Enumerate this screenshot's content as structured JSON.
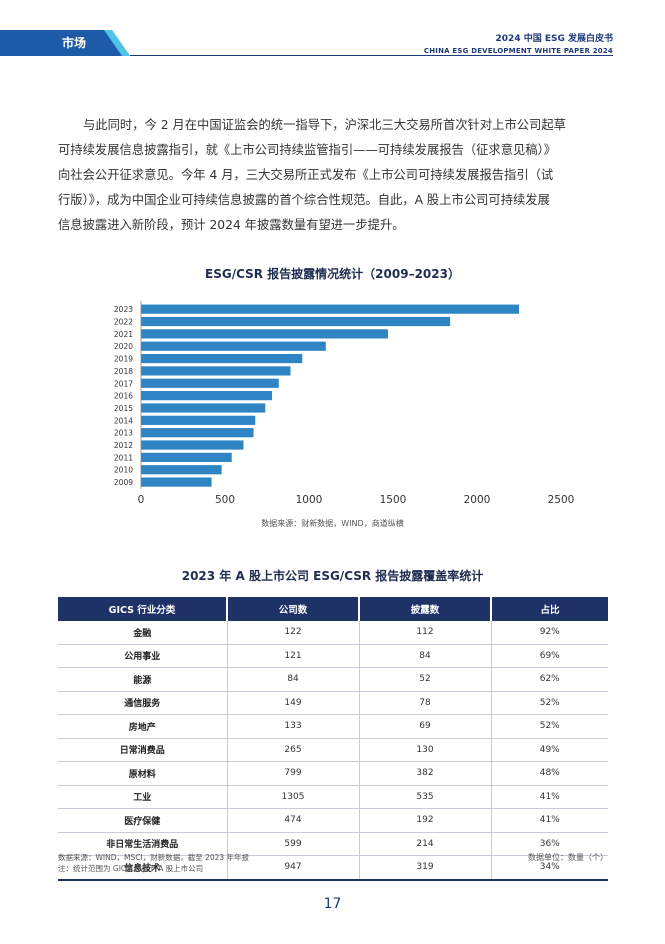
{
  "header": {
    "section": "市场",
    "title_cn": "2024 中国 ESG 发展白皮书",
    "title_en": "CHINA ESG DEVELOPMENT WHITE PAPER 2024"
  },
  "paragraph": {
    "line1": "与此同时，今 2 月在中国证监会的统一指导下，沪深北三大交易所首次针对上市公司起草",
    "line2": "可持续发展信息披露指引，就《上市公司持续监管指引——可持续发展报告（征求意见稿）》",
    "line3": "向社会公开征求意见。今年 4 月，三大交易所正式发布《上市公司可持续发展报告指引（试",
    "line4": "行版）》，成为中国企业可持续信息披露的首个综合性规范。自此，A 股上市公司可持续发展",
    "line5": "信息披露进入新阶段，预计 2024 年披露数量有望进一步提升。"
  },
  "chart_data": {
    "type": "bar",
    "orientation": "horizontal",
    "title": "ESG/CSR 报告披露情况统计（2009–2023）",
    "categories": [
      "2023",
      "2022",
      "2021",
      "2020",
      "2019",
      "2018",
      "2017",
      "2016",
      "2015",
      "2014",
      "2013",
      "2012",
      "2011",
      "2010",
      "2009"
    ],
    "values": [
      2250,
      1840,
      1470,
      1100,
      960,
      890,
      820,
      780,
      740,
      680,
      670,
      610,
      540,
      480,
      420
    ],
    "xlim": [
      0,
      2500
    ],
    "xticks": [
      0,
      500,
      1000,
      1500,
      2000,
      2500
    ],
    "bar_color": "#2f84c4",
    "grid": false,
    "source": "数据来源：财新数据，WIND，商道纵横"
  },
  "table": {
    "title": "2023 年 A 股上市公司 ESG/CSR 报告披露覆盖率统计",
    "headers": [
      "GICS 行业分类",
      "公司数",
      "披露数",
      "占比"
    ],
    "rows": [
      [
        "金融",
        "122",
        "112",
        "92%"
      ],
      [
        "公用事业",
        "121",
        "84",
        "69%"
      ],
      [
        "能源",
        "84",
        "52",
        "62%"
      ],
      [
        "通信服务",
        "149",
        "78",
        "52%"
      ],
      [
        "房地产",
        "133",
        "69",
        "52%"
      ],
      [
        "日常消费品",
        "265",
        "130",
        "49%"
      ],
      [
        "原材料",
        "799",
        "382",
        "48%"
      ],
      [
        "工业",
        "1305",
        "535",
        "41%"
      ],
      [
        "医疗保健",
        "474",
        "192",
        "41%"
      ],
      [
        "非日常生活消费品",
        "599",
        "214",
        "36%"
      ],
      [
        "信息技术",
        "947",
        "319",
        "34%"
      ]
    ],
    "source_line1": "数据来源：WIND，MSCI，财新数据，截至 2023 年年报",
    "source_line2": "注：统计范围为 GICS 分类下 A 股上市公司",
    "unit": "数据单位：数量（个）"
  },
  "page_number": "17",
  "colors": {
    "brand_navy": "#1e3267",
    "header_blue": "#1d5aa8",
    "accent_cyan": "#4fc3e8"
  }
}
